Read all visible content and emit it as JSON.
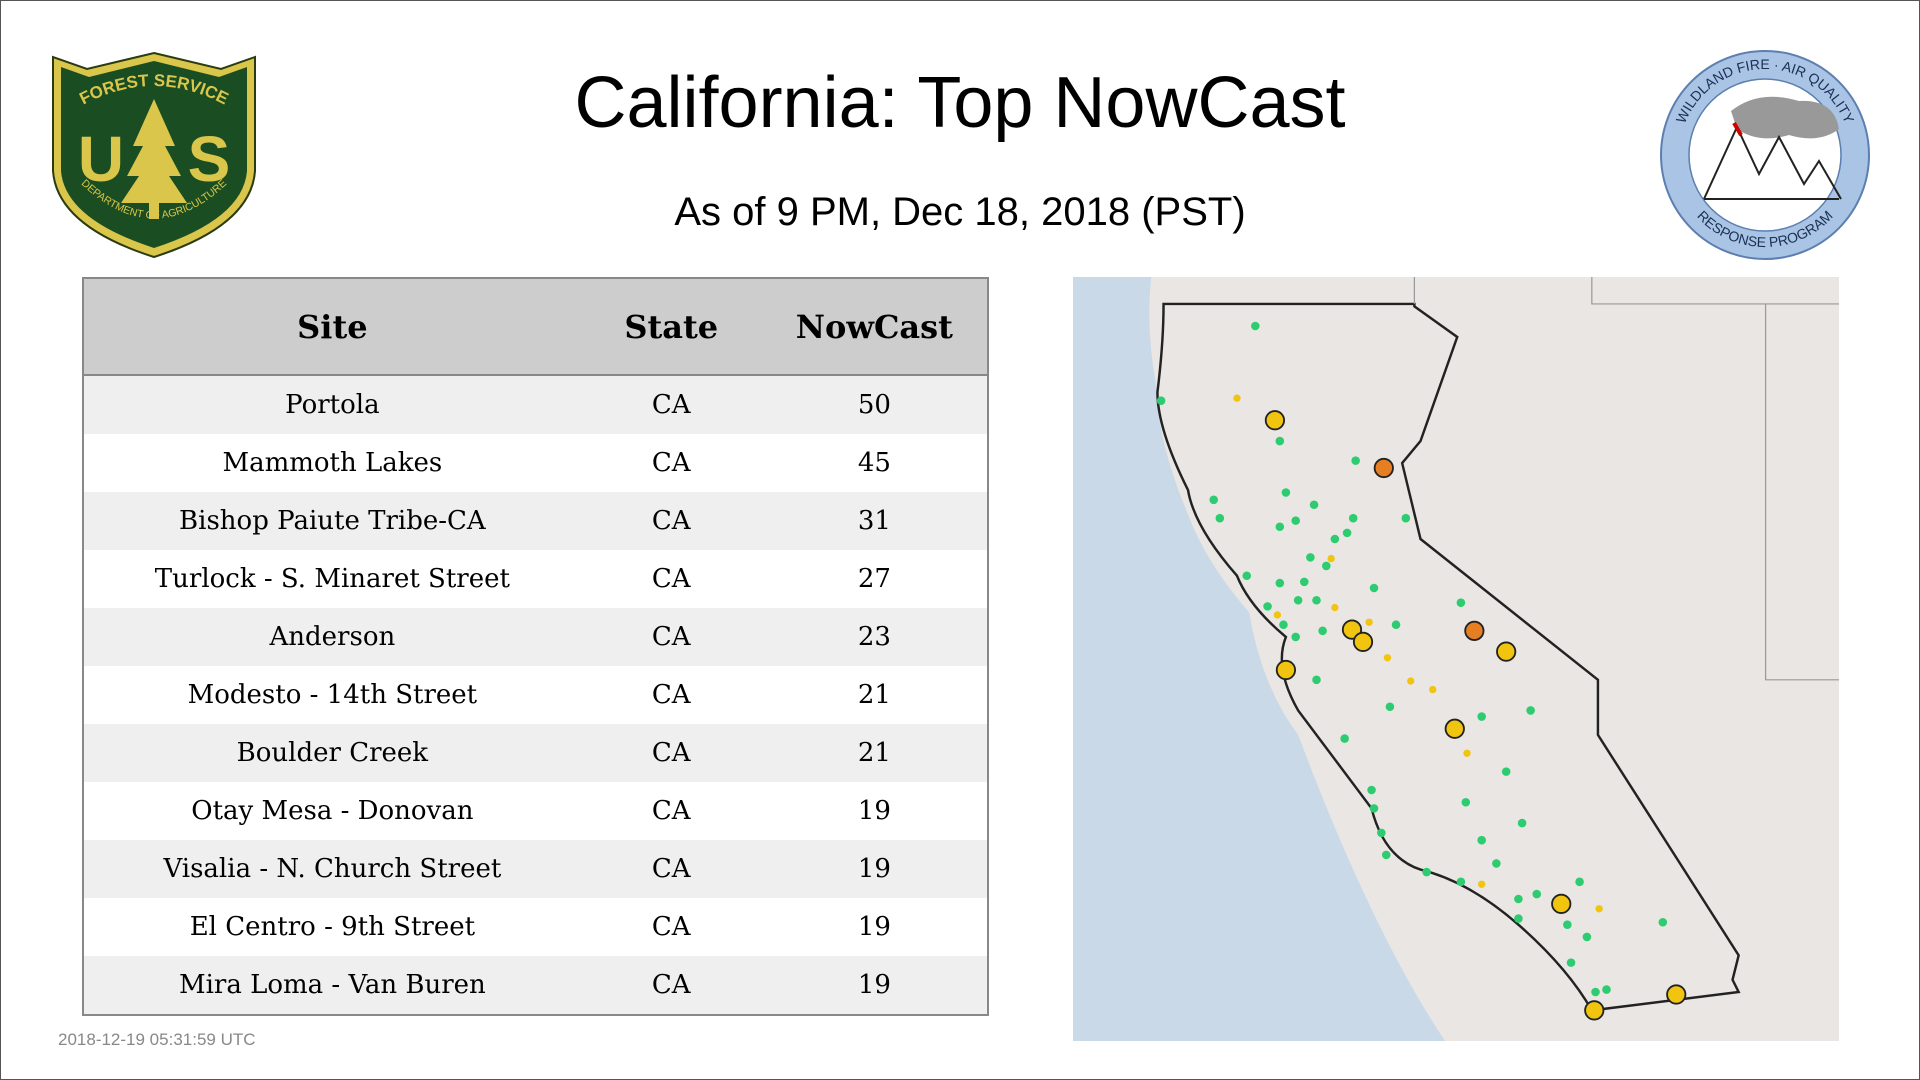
{
  "header": {
    "title": "California: Top NowCast",
    "subtitle": "As of  9 PM, Dec 18, 2018 (PST)"
  },
  "logos": {
    "forest_service": {
      "top": "FOREST SERVICE",
      "left_letter": "U",
      "right_letter": "S",
      "bottom": "DEPARTMENT OF AGRICULTURE"
    },
    "wildland": {
      "top": "WILDLAND FIRE · AIR QUALITY",
      "bottom": "RESPONSE PROGRAM"
    }
  },
  "table": {
    "columns": [
      "Site",
      "State",
      "NowCast"
    ],
    "rows": [
      [
        "Portola",
        "CA",
        "50"
      ],
      [
        "Mammoth Lakes",
        "CA",
        "45"
      ],
      [
        "Bishop Paiute Tribe-CA",
        "CA",
        "31"
      ],
      [
        "Turlock - S. Minaret Street",
        "CA",
        "27"
      ],
      [
        "Anderson",
        "CA",
        "23"
      ],
      [
        "Modesto - 14th Street",
        "CA",
        "21"
      ],
      [
        "Boulder Creek",
        "CA",
        "21"
      ],
      [
        "Otay Mesa - Donovan",
        "CA",
        "19"
      ],
      [
        "Visalia - N. Church Street",
        "CA",
        "19"
      ],
      [
        "El Centro - 9th Street",
        "CA",
        "19"
      ],
      [
        "Mira Loma - Van Buren",
        "CA",
        "19"
      ]
    ]
  },
  "footer": {
    "timestamp": "2018-12-19 05:31:59 UTC"
  }
}
